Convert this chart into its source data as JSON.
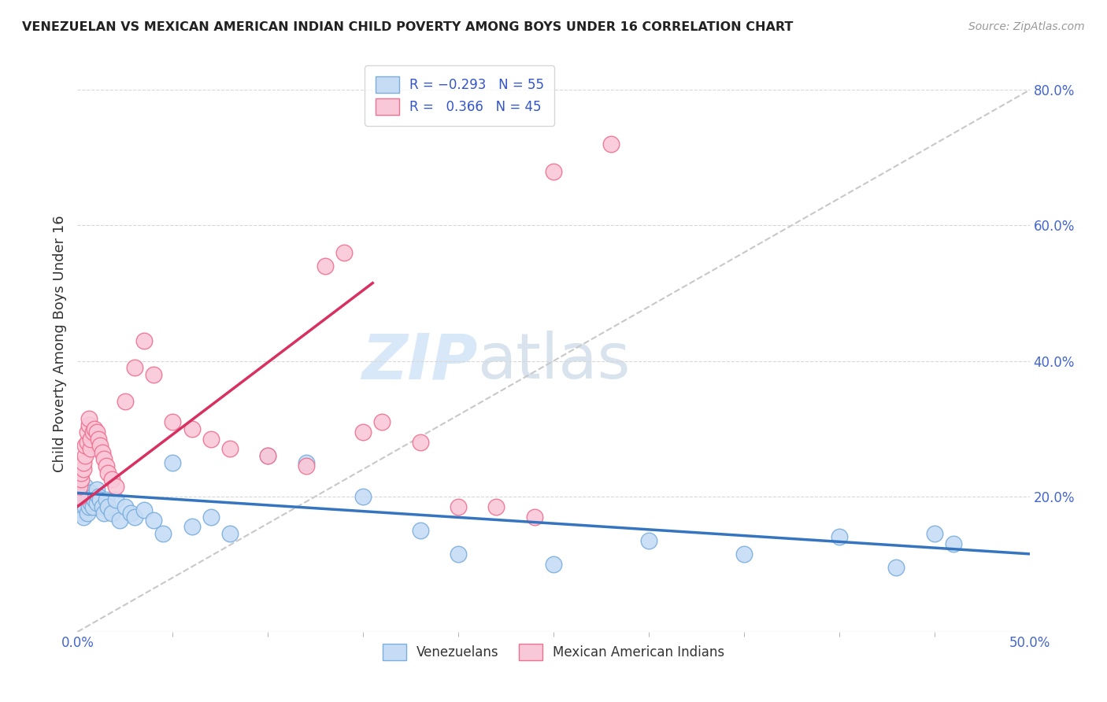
{
  "title": "VENEZUELAN VS MEXICAN AMERICAN INDIAN CHILD POVERTY AMONG BOYS UNDER 16 CORRELATION CHART",
  "source": "Source: ZipAtlas.com",
  "ylabel": "Child Poverty Among Boys Under 16",
  "xlim": [
    0,
    0.5
  ],
  "ylim": [
    0,
    0.85
  ],
  "xtick_positions": [
    0.0,
    0.5
  ],
  "xtick_labels": [
    "0.0%",
    "50.0%"
  ],
  "yticks_right": [
    0.2,
    0.4,
    0.6,
    0.8
  ],
  "ytick_labels_right": [
    "20.0%",
    "40.0%",
    "60.0%",
    "80.0%"
  ],
  "blue_face": "#c6dcf5",
  "blue_edge": "#7aaedd",
  "pink_face": "#f9c8d8",
  "pink_edge": "#f07090",
  "blue_line_color": "#3575c0",
  "pink_line_color": "#d83060",
  "ref_line_color": "#c8c8c8",
  "watermark_color": "#d8e8f8",
  "blue_scatter_x": [
    0.001,
    0.001,
    0.002,
    0.002,
    0.002,
    0.003,
    0.003,
    0.003,
    0.003,
    0.004,
    0.004,
    0.004,
    0.005,
    0.005,
    0.005,
    0.006,
    0.006,
    0.007,
    0.007,
    0.008,
    0.008,
    0.009,
    0.01,
    0.01,
    0.011,
    0.012,
    0.013,
    0.014,
    0.015,
    0.016,
    0.018,
    0.02,
    0.022,
    0.025,
    0.028,
    0.03,
    0.035,
    0.04,
    0.045,
    0.05,
    0.06,
    0.07,
    0.08,
    0.1,
    0.12,
    0.15,
    0.18,
    0.2,
    0.25,
    0.3,
    0.35,
    0.4,
    0.43,
    0.45,
    0.46
  ],
  "blue_scatter_y": [
    0.195,
    0.185,
    0.2,
    0.19,
    0.175,
    0.21,
    0.195,
    0.18,
    0.17,
    0.215,
    0.2,
    0.185,
    0.205,
    0.195,
    0.175,
    0.2,
    0.185,
    0.205,
    0.19,
    0.2,
    0.185,
    0.195,
    0.21,
    0.19,
    0.2,
    0.195,
    0.185,
    0.175,
    0.195,
    0.185,
    0.175,
    0.195,
    0.165,
    0.185,
    0.175,
    0.17,
    0.18,
    0.165,
    0.145,
    0.25,
    0.155,
    0.17,
    0.145,
    0.26,
    0.25,
    0.2,
    0.15,
    0.115,
    0.1,
    0.135,
    0.115,
    0.14,
    0.095,
    0.145,
    0.13
  ],
  "pink_scatter_x": [
    0.001,
    0.001,
    0.002,
    0.002,
    0.003,
    0.003,
    0.004,
    0.004,
    0.005,
    0.005,
    0.006,
    0.006,
    0.007,
    0.007,
    0.008,
    0.009,
    0.01,
    0.011,
    0.012,
    0.013,
    0.014,
    0.015,
    0.016,
    0.018,
    0.02,
    0.025,
    0.03,
    0.035,
    0.04,
    0.05,
    0.06,
    0.07,
    0.08,
    0.1,
    0.12,
    0.13,
    0.14,
    0.15,
    0.16,
    0.18,
    0.2,
    0.22,
    0.24,
    0.25,
    0.28
  ],
  "pink_scatter_y": [
    0.2,
    0.215,
    0.225,
    0.235,
    0.24,
    0.25,
    0.26,
    0.275,
    0.28,
    0.295,
    0.305,
    0.315,
    0.27,
    0.285,
    0.295,
    0.3,
    0.295,
    0.285,
    0.275,
    0.265,
    0.255,
    0.245,
    0.235,
    0.225,
    0.215,
    0.34,
    0.39,
    0.43,
    0.38,
    0.31,
    0.3,
    0.285,
    0.27,
    0.26,
    0.245,
    0.54,
    0.56,
    0.295,
    0.31,
    0.28,
    0.185,
    0.185,
    0.17,
    0.68,
    0.72
  ],
  "blue_line_x": [
    0.0,
    0.5
  ],
  "blue_line_y": [
    0.205,
    0.115
  ],
  "pink_line_x": [
    0.0,
    0.155
  ],
  "pink_line_y": [
    0.185,
    0.515
  ],
  "ref_line_x": [
    0.0,
    0.5
  ],
  "ref_line_y": [
    0.0,
    0.8
  ]
}
